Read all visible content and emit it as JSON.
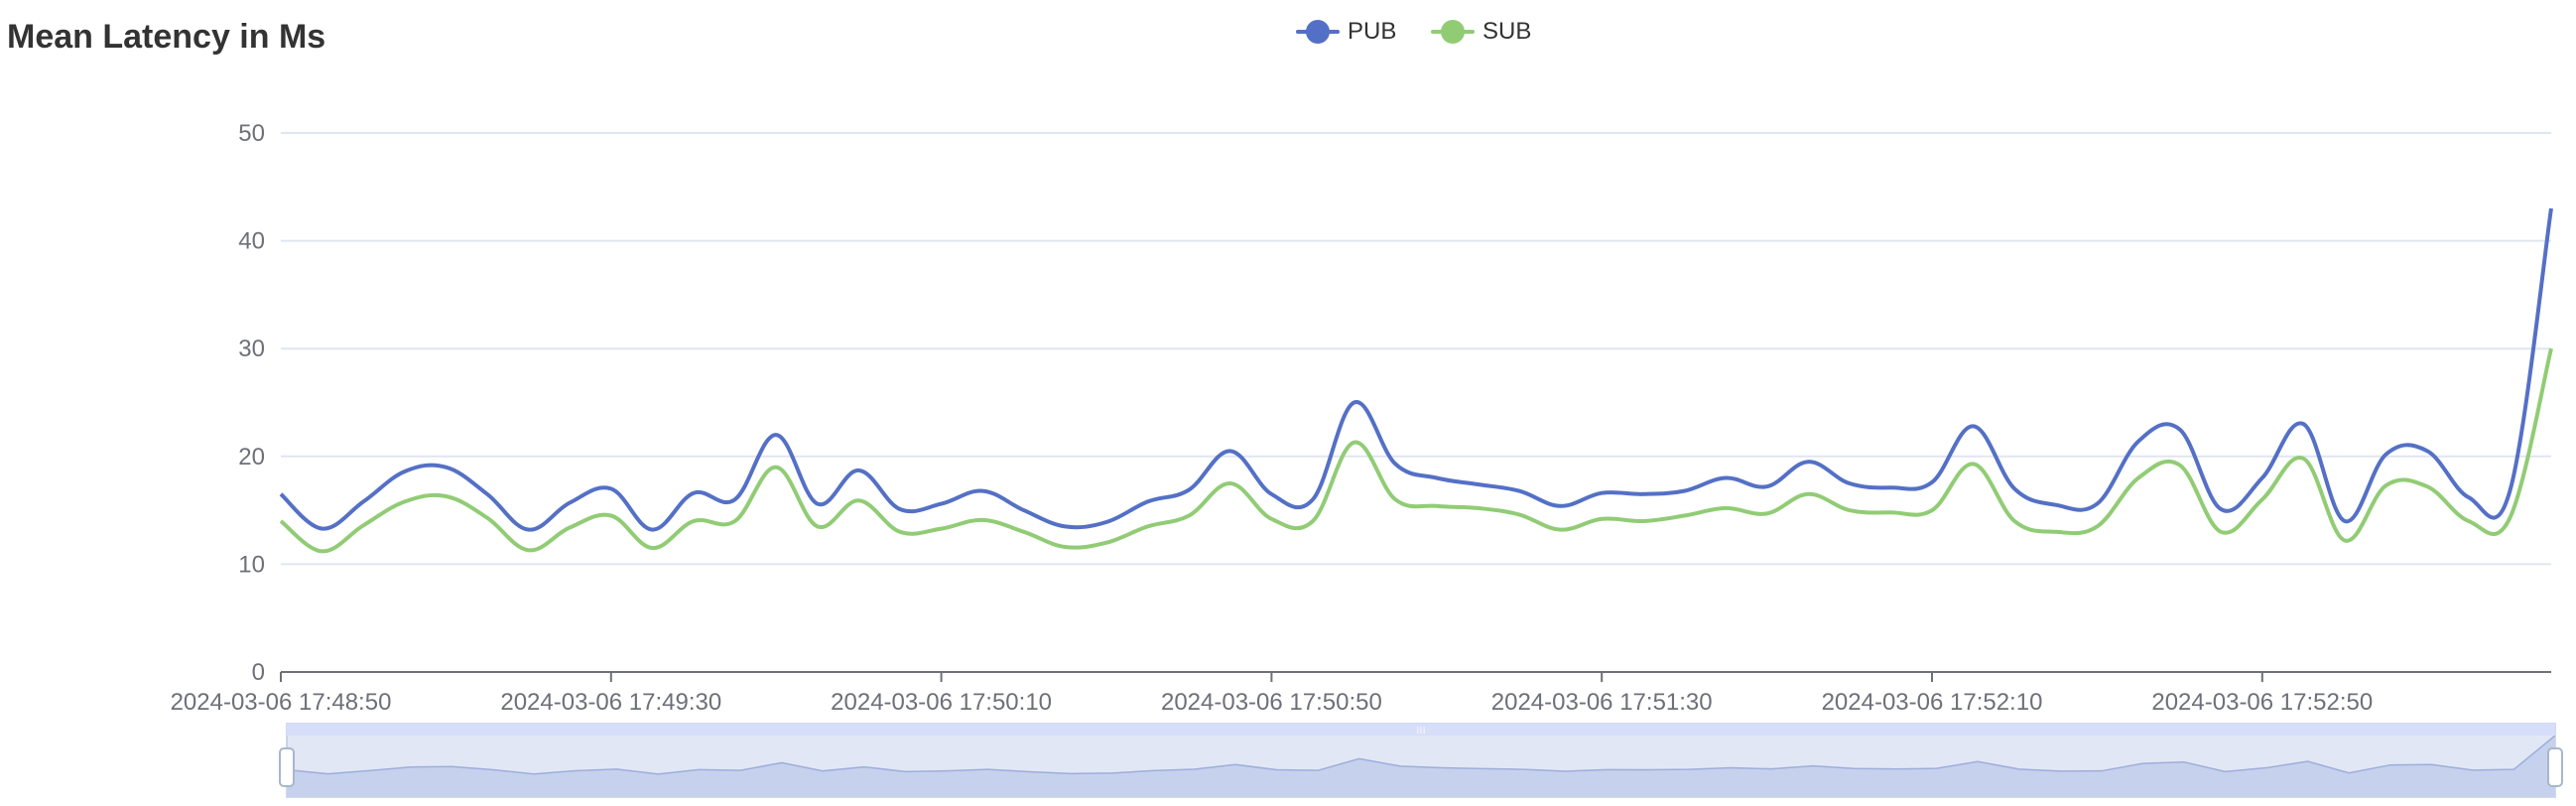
{
  "chart_data": {
    "type": "line",
    "title": "Mean Latency in Ms",
    "legend_position": "top-center",
    "grid": true,
    "smooth": true,
    "ylim": [
      0,
      50
    ],
    "yticks": [
      0,
      10,
      20,
      30,
      40,
      50
    ],
    "xticks": [
      "2024-03-06 17:48:50",
      "2024-03-06 17:49:30",
      "2024-03-06 17:50:10",
      "2024-03-06 17:50:50",
      "2024-03-06 17:51:30",
      "2024-03-06 17:52:10",
      "2024-03-06 17:52:50"
    ],
    "x_start": "2024-03-06 17:48:50",
    "x_end": "2024-03-06 17:53:25",
    "series": [
      {
        "name": "PUB",
        "color": "#5470c6",
        "x": [
          "17:48:50",
          "17:48:55",
          "17:49:00",
          "17:49:05",
          "17:49:10",
          "17:49:15",
          "17:49:20",
          "17:49:25",
          "17:49:30",
          "17:49:35",
          "17:49:40",
          "17:49:45",
          "17:49:50",
          "17:49:55",
          "17:50:00",
          "17:50:05",
          "17:50:10",
          "17:50:15",
          "17:50:20",
          "17:50:25",
          "17:50:30",
          "17:50:35",
          "17:50:40",
          "17:50:45",
          "17:50:50",
          "17:50:55",
          "17:51:00",
          "17:51:05",
          "17:51:10",
          "17:51:15",
          "17:51:20",
          "17:51:25",
          "17:51:30",
          "17:51:35",
          "17:51:40",
          "17:51:45",
          "17:51:50",
          "17:51:55",
          "17:52:00",
          "17:52:05",
          "17:52:10",
          "17:52:15",
          "17:52:20",
          "17:52:25",
          "17:52:30",
          "17:52:35",
          "17:52:40",
          "17:52:45",
          "17:52:50",
          "17:52:55",
          "17:53:00",
          "17:53:05",
          "17:53:10",
          "17:53:15",
          "17:53:20",
          "17:53:25"
        ],
        "values": [
          16.5,
          13.3,
          15.8,
          18.6,
          19.0,
          16.5,
          13.2,
          15.7,
          17.0,
          13.2,
          16.6,
          16.0,
          22.0,
          15.6,
          18.7,
          15.1,
          15.6,
          16.8,
          15.0,
          13.5,
          13.9,
          15.8,
          16.9,
          20.5,
          16.5,
          16.0,
          25.0,
          19.3,
          18.0,
          17.4,
          16.8,
          15.4,
          16.6,
          16.5,
          16.8,
          18.0,
          17.2,
          19.5,
          17.5,
          17.1,
          17.6,
          22.8,
          17.0,
          15.5,
          15.6,
          21.4,
          22.5,
          15.1,
          18.0,
          23.0,
          14.0,
          20.2,
          20.5,
          16.2,
          16.8,
          43.0
        ]
      },
      {
        "name": "SUB",
        "color": "#91cc75",
        "x": [
          "17:48:50",
          "17:48:55",
          "17:49:00",
          "17:49:05",
          "17:49:10",
          "17:49:15",
          "17:49:20",
          "17:49:25",
          "17:49:30",
          "17:49:35",
          "17:49:40",
          "17:49:45",
          "17:49:50",
          "17:49:55",
          "17:50:00",
          "17:50:05",
          "17:50:10",
          "17:50:15",
          "17:50:20",
          "17:50:25",
          "17:50:30",
          "17:50:35",
          "17:50:40",
          "17:50:45",
          "17:50:50",
          "17:50:55",
          "17:51:00",
          "17:51:05",
          "17:51:10",
          "17:51:15",
          "17:51:20",
          "17:51:25",
          "17:51:30",
          "17:51:35",
          "17:51:40",
          "17:51:45",
          "17:51:50",
          "17:51:55",
          "17:52:00",
          "17:52:05",
          "17:52:10",
          "17:52:15",
          "17:52:20",
          "17:52:25",
          "17:52:30",
          "17:52:35",
          "17:52:40",
          "17:52:45",
          "17:52:50",
          "17:52:55",
          "17:53:00",
          "17:53:05",
          "17:53:10",
          "17:53:15",
          "17:53:20",
          "17:53:25"
        ],
        "values": [
          14.0,
          11.2,
          13.6,
          15.8,
          16.3,
          14.3,
          11.3,
          13.4,
          14.5,
          11.5,
          14.0,
          14.0,
          19.0,
          13.5,
          15.9,
          13.0,
          13.3,
          14.1,
          13.0,
          11.6,
          12.0,
          13.5,
          14.5,
          17.5,
          14.2,
          14.0,
          21.3,
          16.0,
          15.4,
          15.2,
          14.6,
          13.2,
          14.2,
          14.0,
          14.5,
          15.2,
          14.7,
          16.5,
          15.0,
          14.8,
          15.0,
          19.3,
          14.0,
          13.0,
          13.5,
          18.0,
          19.2,
          13.0,
          16.0,
          19.8,
          12.2,
          17.3,
          17.2,
          14.0,
          14.3,
          30.0
        ]
      }
    ]
  },
  "datazoom": {
    "start_percent": 0,
    "end_percent": 100,
    "handle_glyph": "⁞⁞⁞"
  }
}
